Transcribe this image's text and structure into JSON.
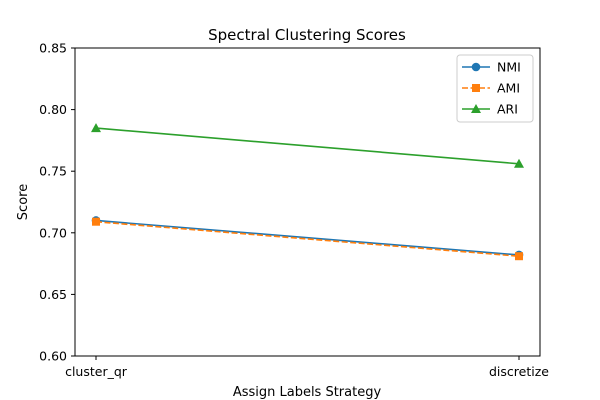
{
  "chart_data": {
    "type": "line",
    "title": "Spectral Clustering Scores",
    "xlabel": "Assign Labels Strategy",
    "ylabel": "Score",
    "categories": [
      "cluster_qr",
      "discretize"
    ],
    "ylim": [
      0.6,
      0.85
    ],
    "yticks": [
      "0.60",
      "0.65",
      "0.70",
      "0.75",
      "0.80",
      "0.85"
    ],
    "grid": false,
    "legend_position": "top-right",
    "series": [
      {
        "name": "NMI",
        "values": [
          0.71,
          0.682
        ],
        "color": "#1f77b4",
        "marker": "circle",
        "linestyle": "solid"
      },
      {
        "name": "AMI",
        "values": [
          0.709,
          0.681
        ],
        "color": "#ff7f0e",
        "marker": "square",
        "linestyle": "dashed"
      },
      {
        "name": "ARI",
        "values": [
          0.785,
          0.756
        ],
        "color": "#2ca02c",
        "marker": "triangle",
        "linestyle": "solid"
      }
    ]
  }
}
